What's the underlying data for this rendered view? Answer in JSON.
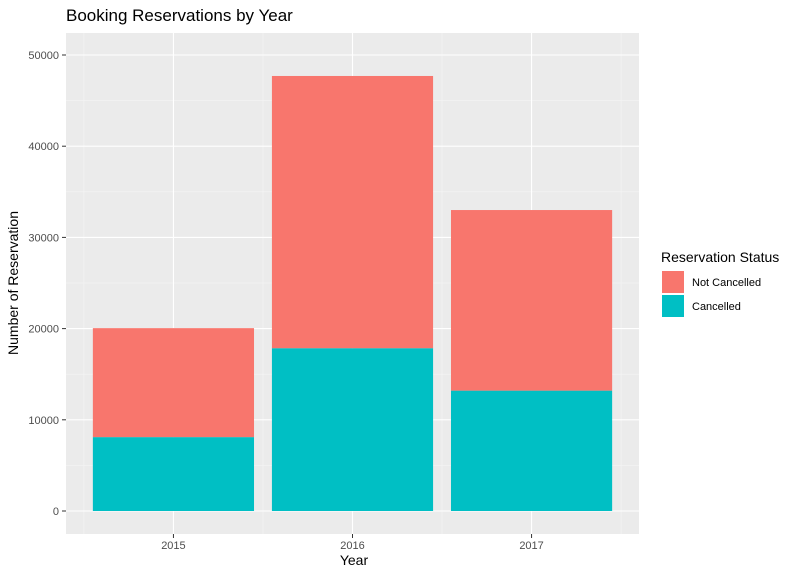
{
  "chart_data": {
    "type": "bar",
    "stacked": true,
    "title": "Booking Reservations by Year",
    "xlabel": "Year",
    "ylabel": "Number of Reservation",
    "categories": [
      "2015",
      "2016",
      "2017"
    ],
    "series": [
      {
        "name": "Cancelled",
        "values": [
          8100,
          17850,
          13200
        ],
        "color": "#00BFC4"
      },
      {
        "name": "Not Cancelled",
        "values": [
          11950,
          29850,
          19800
        ],
        "color": "#F8766D"
      }
    ],
    "ylim": [
      0,
      50000
    ],
    "yticks": [
      0,
      10000,
      20000,
      30000,
      40000,
      50000
    ],
    "y_minor_gridlines": true,
    "legend_title": "Reservation Status",
    "legend_position": "right",
    "legend_order": [
      "Not Cancelled",
      "Cancelled"
    ],
    "panel_background": "#EBEBEB",
    "grid": true
  }
}
